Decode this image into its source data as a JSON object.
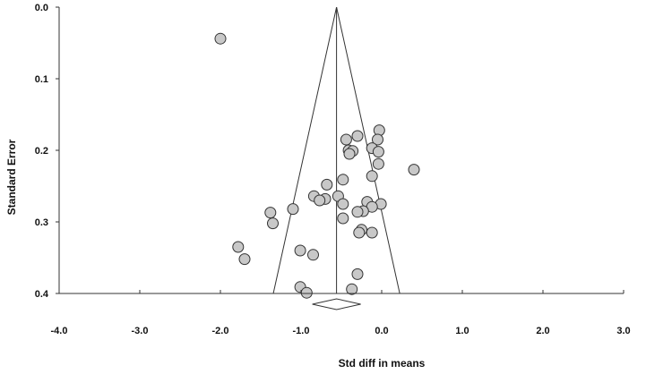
{
  "chart_data": {
    "type": "scatter",
    "xlabel": "Std diff in means",
    "ylabel": "Standard Error",
    "xlim": [
      -4.0,
      3.0
    ],
    "ylim": [
      0.0,
      0.4
    ],
    "y_reversed": true,
    "x_ticks": [
      "-4.0",
      "-3.0",
      "-2.0",
      "-1.0",
      "0.0",
      "1.0",
      "2.0",
      "3.0"
    ],
    "x_tick_values": [
      -4,
      -3,
      -2,
      -1,
      0,
      1,
      2,
      3
    ],
    "y_ticks": [
      "0.0",
      "0.1",
      "0.2",
      "0.3",
      "0.4"
    ],
    "y_tick_values": [
      0.0,
      0.1,
      0.2,
      0.3,
      0.4
    ],
    "grid": false,
    "funnel": {
      "center": -0.56,
      "z": 1.96,
      "se_max": 0.4
    },
    "summary_diamond": {
      "center": -0.56,
      "low": -0.86,
      "high": -0.26
    },
    "point_color": "#c8c8c8",
    "points": [
      {
        "x": -2.0,
        "y": 0.044
      },
      {
        "x": -0.03,
        "y": 0.172
      },
      {
        "x": -0.3,
        "y": 0.18
      },
      {
        "x": -0.44,
        "y": 0.185
      },
      {
        "x": -0.05,
        "y": 0.185
      },
      {
        "x": -0.12,
        "y": 0.197
      },
      {
        "x": -0.41,
        "y": 0.2
      },
      {
        "x": -0.36,
        "y": 0.201
      },
      {
        "x": -0.04,
        "y": 0.202
      },
      {
        "x": -0.4,
        "y": 0.205
      },
      {
        "x": -0.04,
        "y": 0.219
      },
      {
        "x": 0.4,
        "y": 0.227
      },
      {
        "x": -0.12,
        "y": 0.236
      },
      {
        "x": -0.48,
        "y": 0.241
      },
      {
        "x": -0.68,
        "y": 0.248
      },
      {
        "x": -0.84,
        "y": 0.264
      },
      {
        "x": -0.54,
        "y": 0.264
      },
      {
        "x": -0.7,
        "y": 0.268
      },
      {
        "x": -0.77,
        "y": 0.27
      },
      {
        "x": -0.18,
        "y": 0.272
      },
      {
        "x": -0.48,
        "y": 0.275
      },
      {
        "x": -0.01,
        "y": 0.275
      },
      {
        "x": -0.12,
        "y": 0.279
      },
      {
        "x": -1.1,
        "y": 0.282
      },
      {
        "x": -0.23,
        "y": 0.285
      },
      {
        "x": -0.3,
        "y": 0.286
      },
      {
        "x": -1.38,
        "y": 0.287
      },
      {
        "x": -0.48,
        "y": 0.295
      },
      {
        "x": -1.35,
        "y": 0.302
      },
      {
        "x": -0.25,
        "y": 0.311
      },
      {
        "x": -0.28,
        "y": 0.315
      },
      {
        "x": -0.12,
        "y": 0.315
      },
      {
        "x": -1.78,
        "y": 0.335
      },
      {
        "x": -1.01,
        "y": 0.34
      },
      {
        "x": -0.85,
        "y": 0.346
      },
      {
        "x": -1.7,
        "y": 0.352
      },
      {
        "x": -0.3,
        "y": 0.373
      },
      {
        "x": -1.01,
        "y": 0.391
      },
      {
        "x": -0.37,
        "y": 0.394
      },
      {
        "x": -0.93,
        "y": 0.399
      }
    ]
  }
}
